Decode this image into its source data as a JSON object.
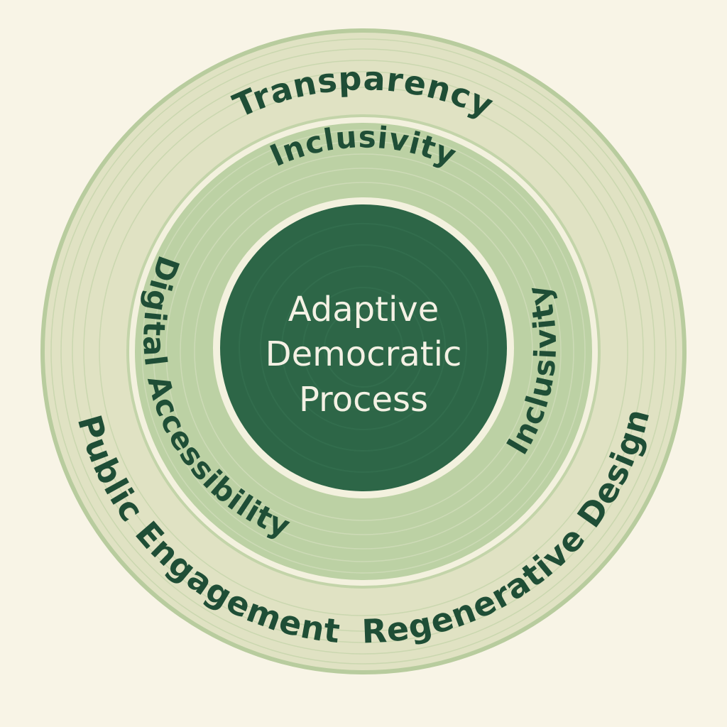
{
  "center": {
    "lines": [
      "Adaptive",
      "Democratic",
      "Process"
    ]
  },
  "inner_ring": {
    "labels": [
      "Inclusivity",
      "Digital Accessibility",
      "Inclusivity"
    ]
  },
  "outer_ring": {
    "labels": [
      "Transparency",
      "Public Engagement",
      "Regenerative Design"
    ]
  },
  "colors": {
    "background": "#f8f4e6",
    "outer_ring": "#e0e2c3",
    "inner_ring": "#bcd1a4",
    "core": "#2d6647",
    "text_dark": "#1f4e36",
    "text_light": "#f4f1e4"
  }
}
